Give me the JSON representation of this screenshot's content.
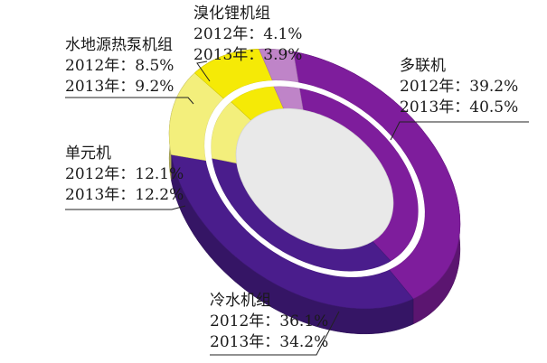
{
  "chart_data": {
    "type": "pie",
    "variant": "3d-doughnut-two-rings",
    "ring_years": [
      "2012年",
      "2013年"
    ],
    "categories": [
      "多联机",
      "冷水机组",
      "单元机",
      "水地源热泵机组",
      "溴化锂机组"
    ],
    "series": [
      {
        "name": "2012年",
        "values": [
          39.2,
          36.1,
          12.1,
          8.5,
          4.1
        ]
      },
      {
        "name": "2013年",
        "values": [
          40.5,
          34.2,
          12.2,
          9.2,
          3.9
        ]
      }
    ],
    "colors": {
      "多联机": "#7e1d9c",
      "冷水机组": "#4a1d8c",
      "单元机": "#f3ef7c",
      "水地源热泵机组": "#f5ea06",
      "溴化锂机组": "#bf84c8",
      "center": "#e9e9e9"
    },
    "labels": [
      {
        "key": "lithium",
        "name": "溴化锂机组",
        "lines": [
          "2012年：4.1%",
          "2013年：3.9%"
        ]
      },
      {
        "key": "ground",
        "name": "水地源热泵机组",
        "lines": [
          "2012年：8.5%",
          "2013年：9.2%"
        ]
      },
      {
        "key": "vrf",
        "name": "多联机",
        "lines": [
          "2012年：39.2%",
          "2013年：40.5%"
        ]
      },
      {
        "key": "unit",
        "name": "单元机",
        "lines": [
          "2012年：12.1%",
          "2013年：12.2%"
        ]
      },
      {
        "key": "chiller",
        "name": "冷水机组",
        "lines": [
          "2012年：36.1%",
          "2013年：34.2%"
        ]
      }
    ]
  }
}
